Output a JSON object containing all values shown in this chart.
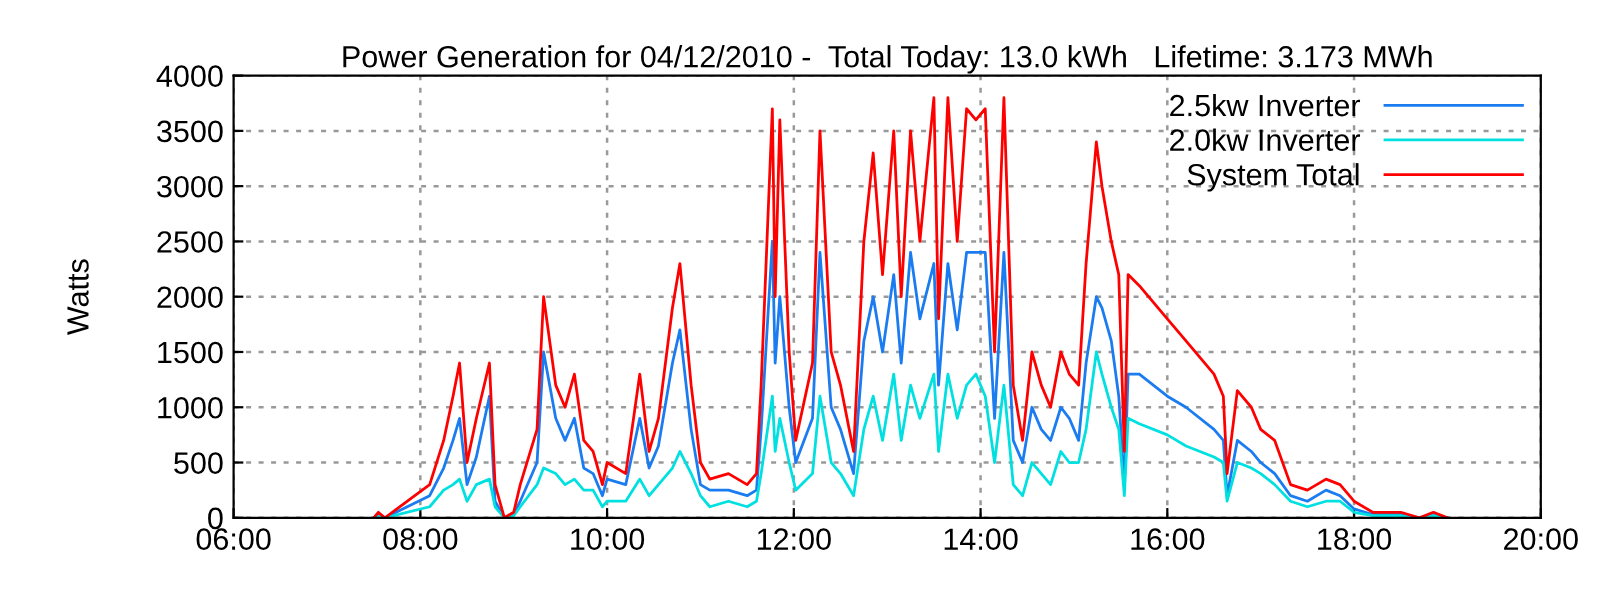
{
  "chart_data": {
    "type": "line",
    "title": "Power Generation for 04/12/2010 -  Total Today: 13.0 kWh   Lifetime: 3.173 MWh",
    "ylabel": "Watts",
    "x": [
      7.5,
      7.55,
      7.62,
      8.1,
      8.25,
      8.35,
      8.42,
      8.5,
      8.6,
      8.74,
      8.8,
      8.9,
      9.0,
      9.07,
      9.25,
      9.32,
      9.45,
      9.55,
      9.65,
      9.75,
      9.85,
      9.95,
      10.0,
      10.2,
      10.35,
      10.45,
      10.55,
      10.7,
      10.78,
      10.9,
      11.0,
      11.1,
      11.3,
      11.5,
      11.6,
      11.65,
      11.77,
      11.8,
      11.85,
      11.95,
      12.02,
      12.2,
      12.28,
      12.4,
      12.5,
      12.64,
      12.75,
      12.85,
      12.95,
      13.07,
      13.15,
      13.25,
      13.35,
      13.5,
      13.55,
      13.65,
      13.75,
      13.85,
      13.95,
      14.05,
      14.15,
      14.25,
      14.35,
      14.45,
      14.55,
      14.65,
      14.75,
      14.86,
      14.95,
      15.05,
      15.13,
      15.24,
      15.3,
      15.4,
      15.48,
      15.54,
      15.58,
      15.7,
      16.0,
      16.2,
      16.5,
      16.6,
      16.64,
      16.75,
      16.9,
      17.0,
      17.15,
      17.32,
      17.5,
      17.7,
      17.85,
      18.0,
      18.2,
      18.5,
      18.7,
      18.85,
      19.0
    ],
    "series": [
      {
        "name": "2.5kw Inverter",
        "color": "#1a7cf0",
        "values": [
          0,
          30,
          0,
          200,
          450,
          700,
          900,
          300,
          550,
          1100,
          150,
          0,
          30,
          150,
          500,
          1500,
          900,
          700,
          900,
          450,
          400,
          200,
          350,
          300,
          900,
          450,
          650,
          1400,
          1700,
          800,
          300,
          250,
          250,
          200,
          250,
          800,
          2500,
          1400,
          2000,
          1000,
          500,
          900,
          2400,
          1000,
          800,
          400,
          1600,
          2000,
          1500,
          2200,
          1400,
          2400,
          1800,
          2300,
          1200,
          2300,
          1700,
          2400,
          2400,
          2400,
          900,
          2400,
          700,
          500,
          1000,
          800,
          700,
          1000,
          900,
          700,
          1400,
          2000,
          1900,
          1600,
          1100,
          300,
          1300,
          1300,
          1100,
          1000,
          800,
          700,
          200,
          700,
          600,
          500,
          400,
          200,
          150,
          250,
          200,
          80,
          30,
          30,
          0,
          30,
          0
        ]
      },
      {
        "name": "2.0kw Inverter",
        "color": "#00e0e0",
        "values": [
          0,
          20,
          0,
          100,
          250,
          300,
          350,
          150,
          300,
          350,
          100,
          0,
          20,
          100,
          300,
          450,
          400,
          300,
          350,
          250,
          250,
          100,
          150,
          150,
          350,
          200,
          300,
          450,
          600,
          400,
          200,
          100,
          150,
          100,
          150,
          400,
          1100,
          600,
          900,
          500,
          250,
          400,
          1100,
          500,
          400,
          200,
          800,
          1100,
          700,
          1300,
          700,
          1200,
          900,
          1300,
          600,
          1300,
          900,
          1200,
          1300,
          1100,
          500,
          1200,
          300,
          200,
          500,
          400,
          300,
          600,
          500,
          500,
          800,
          1500,
          1300,
          1000,
          800,
          200,
          900,
          850,
          750,
          650,
          550,
          500,
          150,
          500,
          450,
          400,
          300,
          150,
          100,
          150,
          150,
          50,
          20,
          20,
          0,
          20,
          0
        ]
      },
      {
        "name": "System Total",
        "color": "#ff0000",
        "values": [
          0,
          50,
          0,
          300,
          700,
          1100,
          1400,
          500,
          900,
          1400,
          300,
          0,
          50,
          300,
          800,
          2000,
          1200,
          1000,
          1300,
          700,
          600,
          300,
          500,
          400,
          1300,
          600,
          900,
          1900,
          2300,
          1200,
          500,
          350,
          400,
          300,
          400,
          1200,
          3700,
          2000,
          3600,
          1500,
          700,
          1400,
          3500,
          1500,
          1200,
          600,
          2500,
          3300,
          2200,
          3500,
          2000,
          3500,
          2500,
          3800,
          1800,
          3800,
          2500,
          3700,
          3600,
          3700,
          1500,
          3800,
          1200,
          700,
          1500,
          1200,
          1000,
          1500,
          1300,
          1200,
          2300,
          3400,
          3000,
          2500,
          2200,
          600,
          2200,
          2100,
          1800,
          1600,
          1300,
          1100,
          400,
          1150,
          1000,
          800,
          700,
          300,
          250,
          350,
          300,
          150,
          50,
          50,
          0,
          50,
          0
        ]
      }
    ],
    "xlim": [
      6,
      20
    ],
    "xticks": [
      {
        "value": 6,
        "label": "06:00"
      },
      {
        "value": 8,
        "label": "08:00"
      },
      {
        "value": 10,
        "label": "10:00"
      },
      {
        "value": 12,
        "label": "12:00"
      },
      {
        "value": 14,
        "label": "14:00"
      },
      {
        "value": 16,
        "label": "16:00"
      },
      {
        "value": 18,
        "label": "18:00"
      },
      {
        "value": 20,
        "label": "20:00"
      }
    ],
    "ylim": [
      0,
      4000
    ],
    "yticks": [
      0,
      500,
      1000,
      1500,
      2000,
      2500,
      3000,
      3500,
      4000
    ],
    "grid": true,
    "legend": "top right",
    "line_style": "solid",
    "marker": "none"
  }
}
